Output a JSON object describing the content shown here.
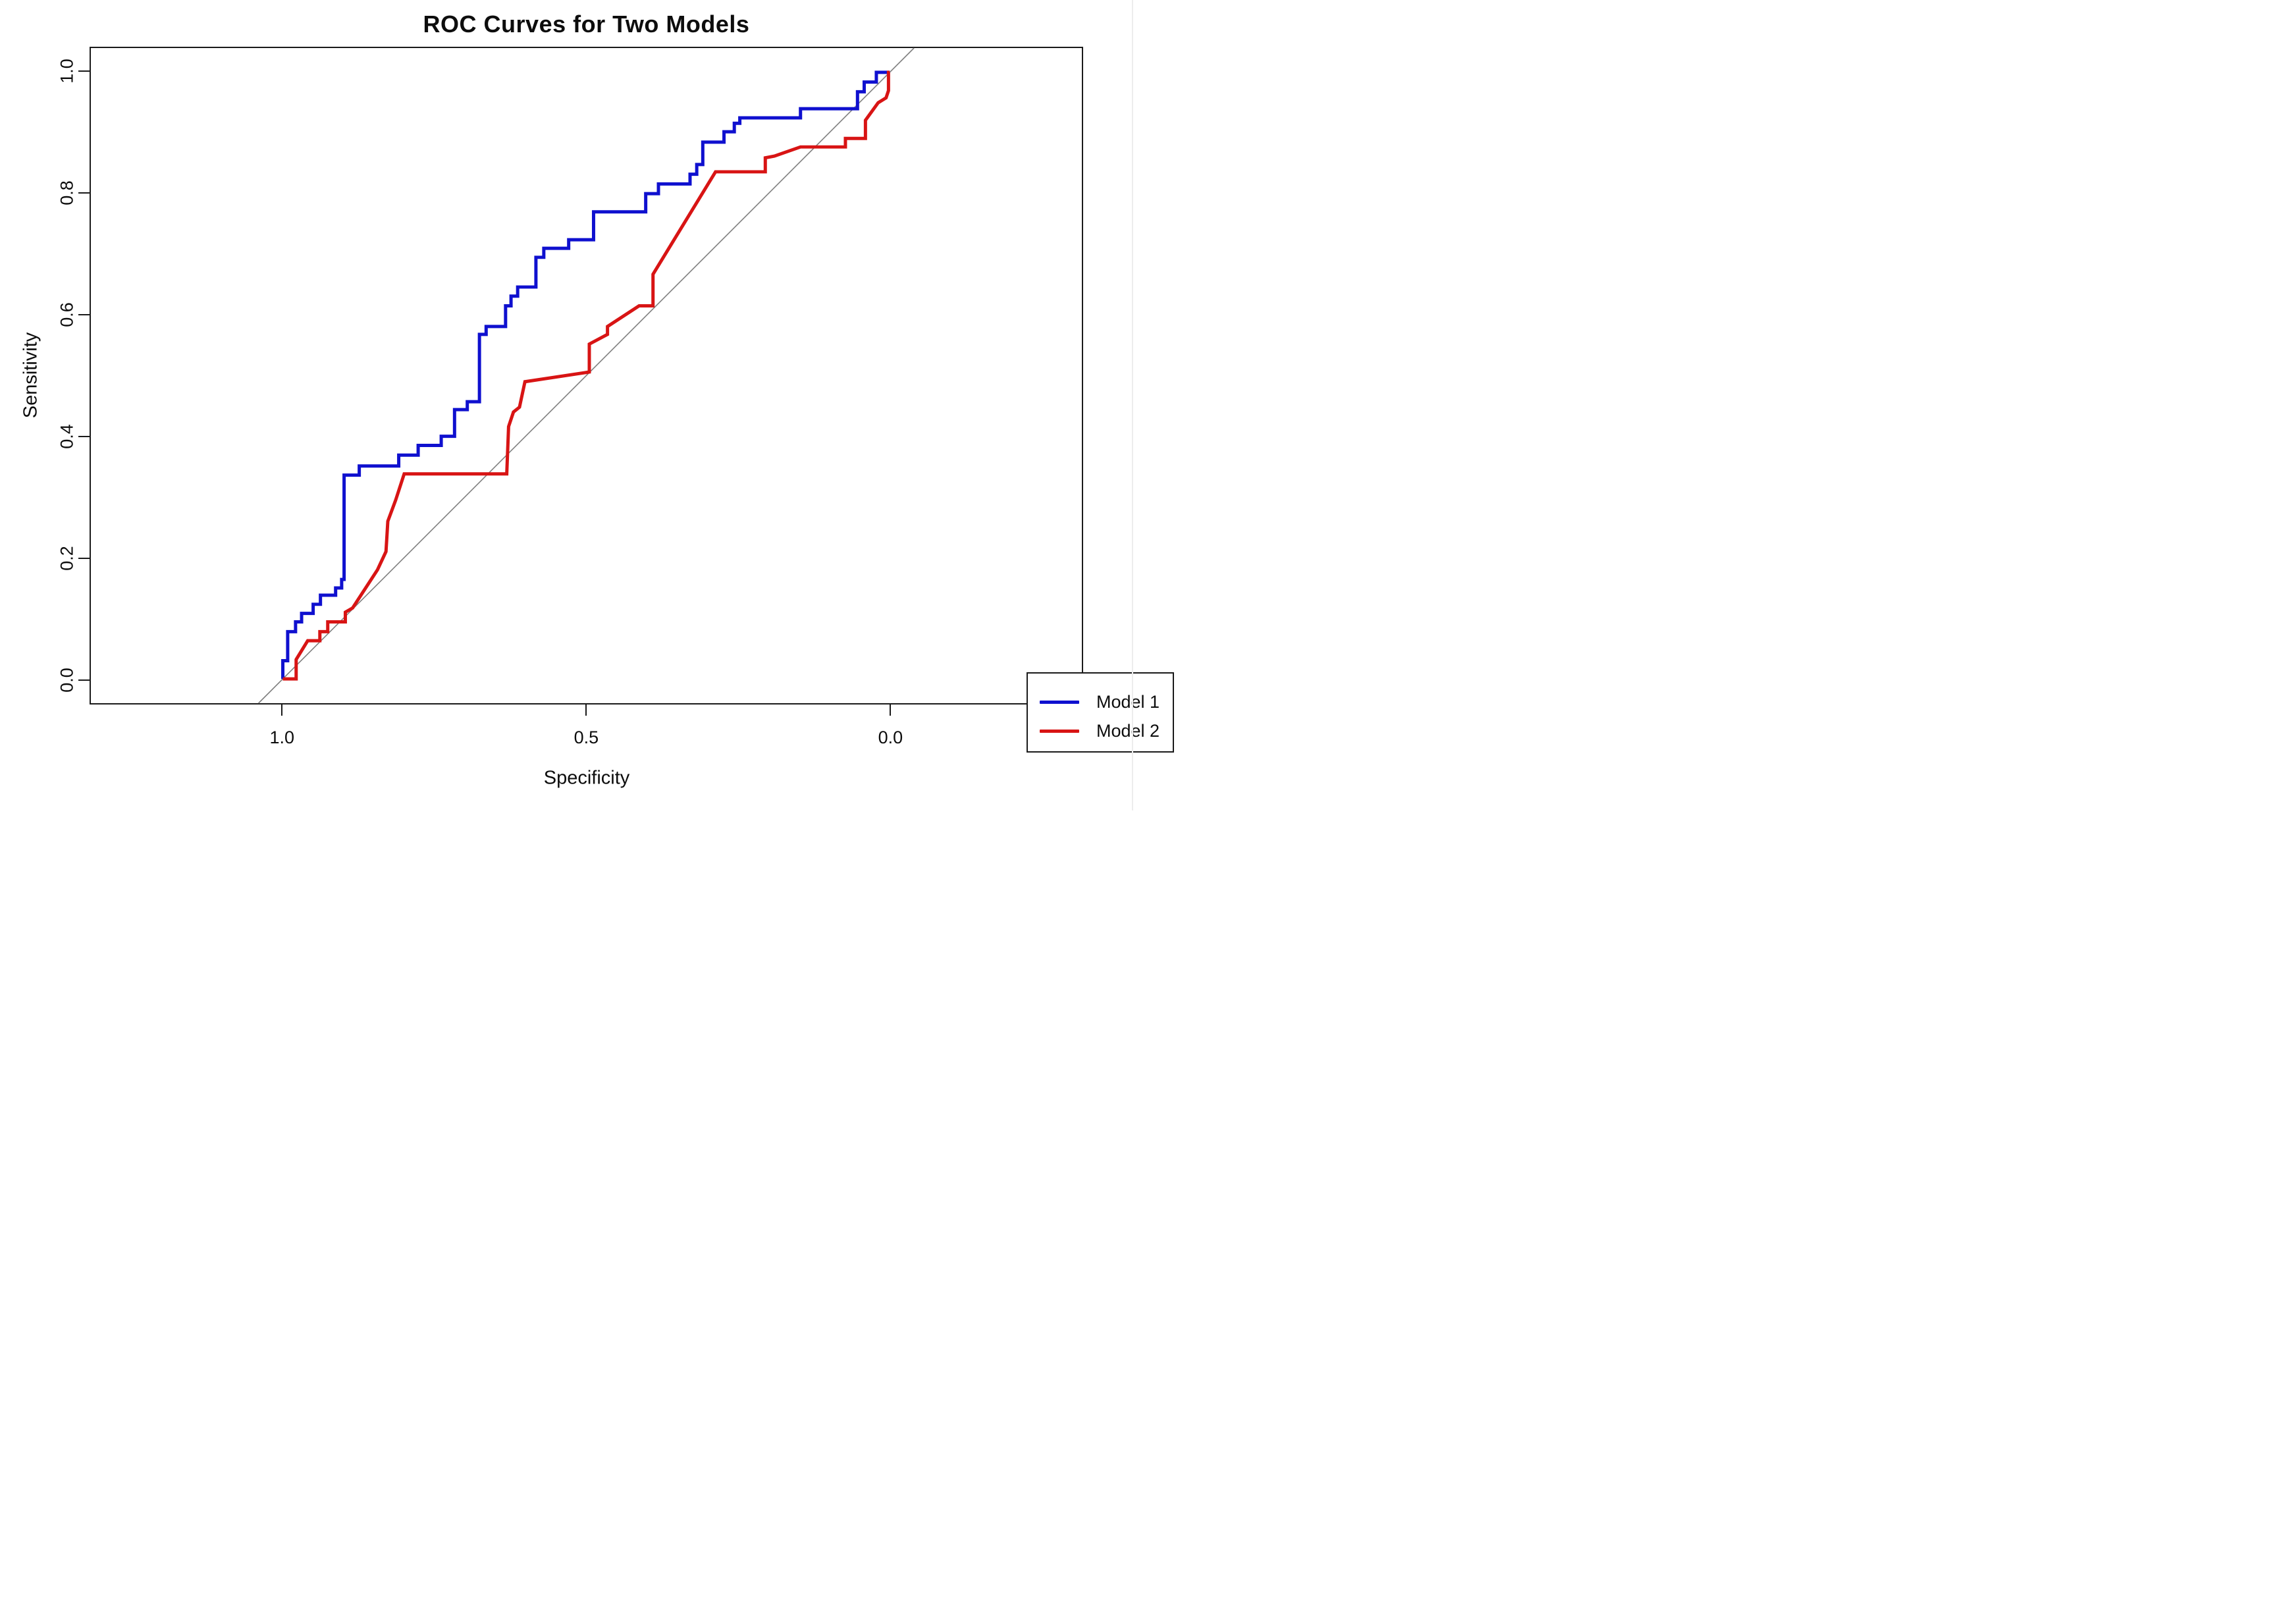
{
  "figure": {
    "title": "ROC Curves for Two Models",
    "background_color": "#ffffff",
    "box_color": "#1a1a1a"
  },
  "axes": {
    "x": {
      "label": "Specificity",
      "ticks": [
        {
          "value": 1.0,
          "label": "1.0"
        },
        {
          "value": 0.5,
          "label": "0.5"
        },
        {
          "value": 0.0,
          "label": "0.0"
        }
      ]
    },
    "y": {
      "label": "Sensitivity",
      "ticks": [
        {
          "value": 0.0,
          "label": "0.0"
        },
        {
          "value": 0.2,
          "label": "0.2"
        },
        {
          "value": 0.4,
          "label": "0.4"
        },
        {
          "value": 0.6,
          "label": "0.6"
        },
        {
          "value": 0.8,
          "label": "0.8"
        },
        {
          "value": 1.0,
          "label": "1.0"
        }
      ]
    }
  },
  "legend": {
    "entries": [
      {
        "label": "Model 1",
        "color": "#0f10cf"
      },
      {
        "label": "Model 2",
        "color": "#d81414"
      }
    ]
  },
  "chart_data": {
    "type": "line",
    "subtype": "roc-step-curves",
    "title": "ROC Curves for Two Models",
    "xlabel": "Specificity",
    "ylabel": "Sensitivity",
    "x_axis_reversed": true,
    "xlim": [
      1.3163,
      -0.3166
    ],
    "ylim": [
      -0.04,
      1.04
    ],
    "x_ticks": [
      1.0,
      0.5,
      0.0
    ],
    "y_ticks": [
      0.0,
      0.2,
      0.4,
      0.6,
      0.8,
      1.0
    ],
    "grid": false,
    "legend_position": "bottomright",
    "reference_line": {
      "name": "chance-diagonal",
      "color": "#7f7f7f",
      "width": 1.6,
      "points": [
        [
          1.04,
          -0.04
        ],
        [
          -0.04,
          1.04
        ]
      ]
    },
    "series": [
      {
        "name": "Model 1",
        "color": "#0f10cf",
        "width": 5,
        "points": [
          [
            1.0,
            0.0
          ],
          [
            1.0,
            0.03
          ],
          [
            0.992,
            0.03
          ],
          [
            0.992,
            0.078
          ],
          [
            0.979,
            0.078
          ],
          [
            0.979,
            0.094
          ],
          [
            0.969,
            0.094
          ],
          [
            0.969,
            0.108
          ],
          [
            0.95,
            0.108
          ],
          [
            0.95,
            0.123
          ],
          [
            0.938,
            0.123
          ],
          [
            0.938,
            0.138
          ],
          [
            0.913,
            0.138
          ],
          [
            0.913,
            0.15
          ],
          [
            0.903,
            0.15
          ],
          [
            0.903,
            0.164
          ],
          [
            0.899,
            0.164
          ],
          [
            0.899,
            0.336
          ],
          [
            0.874,
            0.336
          ],
          [
            0.874,
            0.351
          ],
          [
            0.809,
            0.351
          ],
          [
            0.809,
            0.369
          ],
          [
            0.777,
            0.369
          ],
          [
            0.777,
            0.385
          ],
          [
            0.739,
            0.385
          ],
          [
            0.739,
            0.4
          ],
          [
            0.717,
            0.4
          ],
          [
            0.717,
            0.444
          ],
          [
            0.696,
            0.444
          ],
          [
            0.696,
            0.457
          ],
          [
            0.676,
            0.457
          ],
          [
            0.676,
            0.568
          ],
          [
            0.665,
            0.568
          ],
          [
            0.665,
            0.581
          ],
          [
            0.633,
            0.581
          ],
          [
            0.633,
            0.615
          ],
          [
            0.624,
            0.615
          ],
          [
            0.624,
            0.631
          ],
          [
            0.613,
            0.631
          ],
          [
            0.613,
            0.646
          ],
          [
            0.583,
            0.646
          ],
          [
            0.583,
            0.695
          ],
          [
            0.57,
            0.695
          ],
          [
            0.57,
            0.71
          ],
          [
            0.529,
            0.71
          ],
          [
            0.529,
            0.724
          ],
          [
            0.488,
            0.724
          ],
          [
            0.488,
            0.77
          ],
          [
            0.402,
            0.77
          ],
          [
            0.402,
            0.8
          ],
          [
            0.381,
            0.8
          ],
          [
            0.381,
            0.816
          ],
          [
            0.329,
            0.816
          ],
          [
            0.329,
            0.832
          ],
          [
            0.318,
            0.832
          ],
          [
            0.318,
            0.848
          ],
          [
            0.308,
            0.848
          ],
          [
            0.308,
            0.885
          ],
          [
            0.273,
            0.885
          ],
          [
            0.273,
            0.902
          ],
          [
            0.256,
            0.902
          ],
          [
            0.256,
            0.916
          ],
          [
            0.247,
            0.916
          ],
          [
            0.247,
            0.925
          ],
          [
            0.147,
            0.925
          ],
          [
            0.147,
            0.94
          ],
          [
            0.053,
            0.94
          ],
          [
            0.053,
            0.968
          ],
          [
            0.042,
            0.968
          ],
          [
            0.042,
            0.984
          ],
          [
            0.022,
            0.984
          ],
          [
            0.022,
            1.0
          ],
          [
            0.0,
            1.0
          ]
        ]
      },
      {
        "name": "Model 2",
        "color": "#d81414",
        "width": 5,
        "points": [
          [
            1.0,
            0.0
          ],
          [
            0.978,
            0.0
          ],
          [
            0.978,
            0.032
          ],
          [
            0.959,
            0.063
          ],
          [
            0.939,
            0.063
          ],
          [
            0.939,
            0.078
          ],
          [
            0.926,
            0.078
          ],
          [
            0.926,
            0.094
          ],
          [
            0.897,
            0.094
          ],
          [
            0.897,
            0.11
          ],
          [
            0.885,
            0.117
          ],
          [
            0.844,
            0.18
          ],
          [
            0.83,
            0.21
          ],
          [
            0.827,
            0.26
          ],
          [
            0.814,
            0.295
          ],
          [
            0.8,
            0.338
          ],
          [
            0.631,
            0.338
          ],
          [
            0.628,
            0.416
          ],
          [
            0.62,
            0.44
          ],
          [
            0.61,
            0.448
          ],
          [
            0.601,
            0.49
          ],
          [
            0.495,
            0.506
          ],
          [
            0.495,
            0.552
          ],
          [
            0.465,
            0.568
          ],
          [
            0.465,
            0.581
          ],
          [
            0.413,
            0.615
          ],
          [
            0.39,
            0.615
          ],
          [
            0.39,
            0.667
          ],
          [
            0.287,
            0.836
          ],
          [
            0.205,
            0.836
          ],
          [
            0.205,
            0.859
          ],
          [
            0.19,
            0.862
          ],
          [
            0.147,
            0.877
          ],
          [
            0.073,
            0.877
          ],
          [
            0.073,
            0.891
          ],
          [
            0.04,
            0.891
          ],
          [
            0.04,
            0.921
          ],
          [
            0.019,
            0.95
          ],
          [
            0.006,
            0.958
          ],
          [
            0.002,
            0.97
          ],
          [
            0.002,
            1.0
          ],
          [
            0.0,
            1.0
          ]
        ]
      }
    ]
  }
}
